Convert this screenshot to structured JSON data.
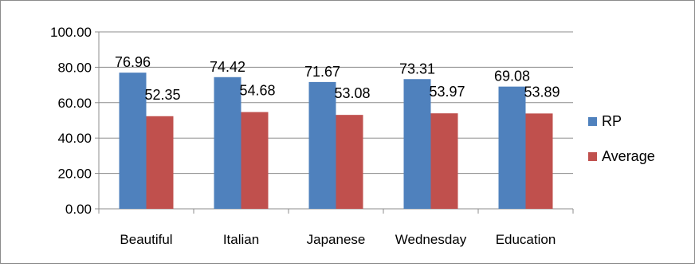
{
  "chart_data": {
    "type": "bar",
    "categories": [
      "Beautiful",
      "Italian",
      "Japanese",
      "Wednesday",
      "Education"
    ],
    "series": [
      {
        "name": "RP",
        "color": "#4f81bd",
        "values": [
          76.96,
          74.42,
          71.67,
          73.31,
          69.08
        ],
        "labels": [
          "76.96",
          "74.42",
          "71.67",
          "73.31",
          "69.08"
        ]
      },
      {
        "name": "Average",
        "color": "#c0504d",
        "values": [
          52.35,
          54.68,
          53.08,
          53.97,
          53.89
        ],
        "labels": [
          "52.35",
          "54.68",
          "53.08",
          "53.97",
          "53.89"
        ]
      }
    ],
    "ylim": [
      0,
      100
    ],
    "yticks": [
      "0.00",
      "20.00",
      "40.00",
      "60.00",
      "80.00",
      "100.00"
    ],
    "ytick_values": [
      0,
      20,
      40,
      60,
      80,
      100
    ],
    "grid": true,
    "legend_position": "right",
    "title": "",
    "xlabel": "",
    "ylabel": ""
  }
}
